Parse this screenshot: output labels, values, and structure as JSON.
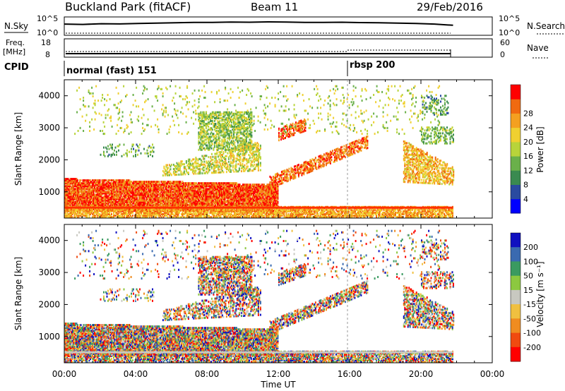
{
  "header": {
    "title": "Buckland Park (fitACF)",
    "beam": "Beam 11",
    "date": "29/Feb/2016"
  },
  "panels": {
    "nsky": {
      "label": "N.Sky",
      "tick_top": "10^5",
      "tick_bottom": "10^0"
    },
    "nsearch": {
      "label": "N.Search",
      "tick_top": "10^5",
      "tick_bottom": "10^0"
    },
    "freq": {
      "label_line1": "Freq.",
      "label_line2": "[MHz]",
      "tick_top": "18",
      "tick_bottom": "8"
    },
    "nave": {
      "label": "Nave",
      "tick_top": "60",
      "tick_bottom": "0"
    },
    "cpid": {
      "label": "CPID",
      "modes": [
        "normal (fast) 151",
        "rbsp 200"
      ]
    }
  },
  "chart_data": [
    {
      "type": "heatmap",
      "name": "power",
      "xlabel": "",
      "ylabel": "Slant Range [km]",
      "xlim": [
        0,
        24
      ],
      "ylim": [
        180,
        4500
      ],
      "yticks": [
        1000,
        2000,
        3000,
        4000
      ],
      "colorbar": {
        "label": "Power [dB]",
        "ticks": [
          "4",
          "8",
          "12",
          "16",
          "20",
          "24",
          "28"
        ],
        "colors": [
          "#0000ff",
          "#2a4aa0",
          "#3a8a50",
          "#6ab04a",
          "#b8d43a",
          "#f0d030",
          "#f4a020",
          "#f06a10",
          "#ff0000"
        ]
      }
    },
    {
      "type": "heatmap",
      "name": "velocity",
      "xlabel": "Time UT",
      "ylabel": "Slant Range [km]",
      "xlim": [
        0,
        24
      ],
      "ylim": [
        180,
        4500
      ],
      "yticks": [
        1000,
        2000,
        3000,
        4000
      ],
      "xticks": [
        "00:00",
        "04:00",
        "08:00",
        "12:00",
        "16:00",
        "20:00",
        "00:00"
      ],
      "colorbar": {
        "label": "Velocity [m s⁻¹]",
        "ticks": [
          "200",
          "100",
          "50",
          "15",
          "-15",
          "-50",
          "-100",
          "-200"
        ],
        "colors": [
          "#1010c0",
          "#3a6ab0",
          "#3a9a60",
          "#8cc840",
          "#c8c8c0",
          "#f0c040",
          "#f08c20",
          "#f04a10",
          "#ff0000"
        ]
      }
    }
  ],
  "time_series": {
    "nsky_level": [
      0.62,
      0.6,
      0.64,
      0.63,
      0.66,
      0.68,
      0.7,
      0.72,
      0.72,
      0.74,
      0.73,
      0.75,
      0.74,
      0.72,
      0.72,
      0.73,
      0.71,
      0.7,
      0.68,
      0.66,
      0.62,
      0.55
    ],
    "mode_change_hour": 16.0,
    "data_end_hour": 21.8
  }
}
